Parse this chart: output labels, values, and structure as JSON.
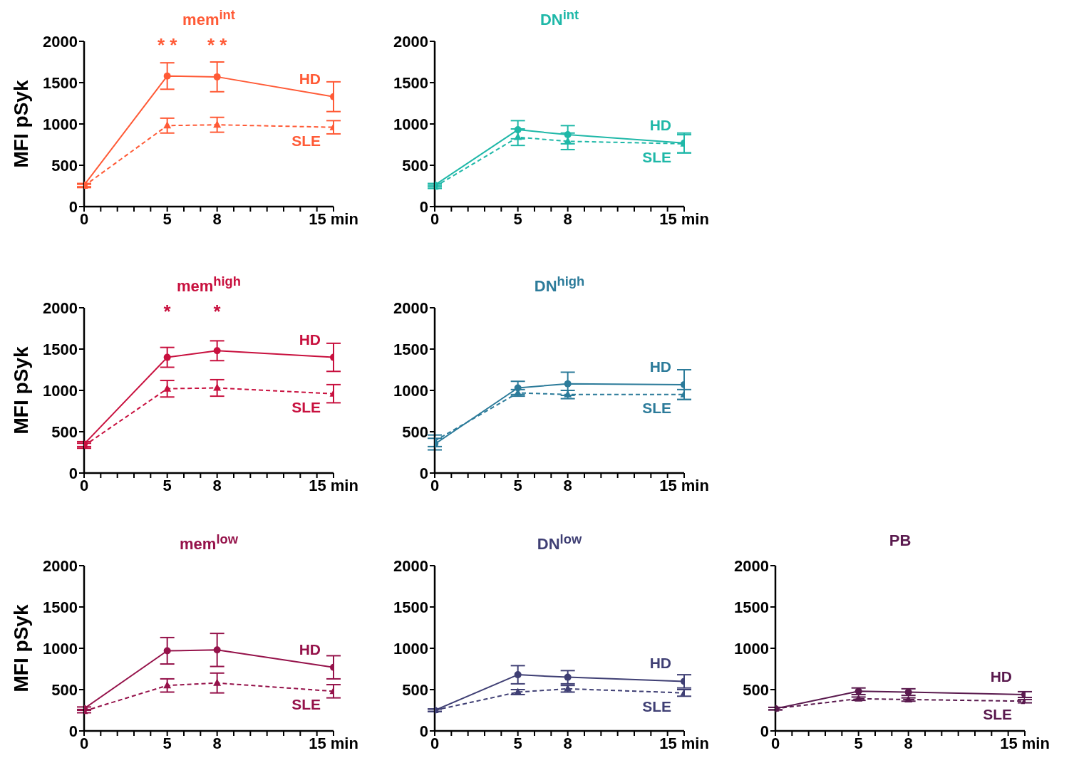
{
  "chart_data": [
    {
      "type": "line",
      "title": "mem$^{int}$",
      "ylabel": "MFI pSyk",
      "x": [
        0,
        5,
        8,
        15
      ],
      "xlim": [
        0,
        15
      ],
      "xticks": [
        0,
        {
          "value": 1,
          "label": null
        },
        {
          "value": 2,
          "label": null
        },
        {
          "value": 3,
          "label": null
        },
        {
          "value": 4,
          "label": null
        },
        5,
        {
          "value": 6,
          "label": null
        },
        {
          "value": 7,
          "label": null
        },
        8,
        {
          "value": 9,
          "label": null
        },
        {
          "value": 10,
          "label": null
        },
        {
          "value": 11,
          "label": null
        },
        {
          "value": 12,
          "label": null
        },
        {
          "value": 13,
          "label": null
        },
        {
          "value": 14,
          "label": null
        },
        {
          "value": 15,
          "label": "15 min"
        }
      ],
      "ylim": [
        0,
        2000
      ],
      "yticks": [
        0,
        500,
        1000,
        1500,
        2000
      ],
      "grid": false,
      "legend": false,
      "series": [
        {
          "name": "HD",
          "color": "#ff5a36",
          "marker": "circle",
          "line_style": "solid",
          "values": [
            260,
            1580,
            1570,
            1330
          ],
          "errors": [
            20,
            160,
            180,
            180
          ]
        },
        {
          "name": "SLE",
          "color": "#ff5a36",
          "marker": "triangle",
          "line_style": "dashed",
          "values": [
            250,
            980,
            990,
            960
          ],
          "errors": [
            20,
            90,
            90,
            80
          ]
        }
      ],
      "annotations": [
        "* *",
        "* *"
      ]
    },
    {
      "type": "line",
      "title": "DN$^{int}$",
      "x": [
        0,
        5,
        8,
        15
      ],
      "xlim": [
        0,
        15
      ],
      "xticks": [
        0,
        {
          "value": 1,
          "label": null
        },
        {
          "value": 2,
          "label": null
        },
        {
          "value": 3,
          "label": null
        },
        {
          "value": 4,
          "label": null
        },
        5,
        {
          "value": 6,
          "label": null
        },
        {
          "value": 7,
          "label": null
        },
        8,
        {
          "value": 9,
          "label": null
        },
        {
          "value": 10,
          "label": null
        },
        {
          "value": 11,
          "label": null
        },
        {
          "value": 12,
          "label": null
        },
        {
          "value": 13,
          "label": null
        },
        {
          "value": 14,
          "label": null
        },
        {
          "value": 15,
          "label": "15 min"
        }
      ],
      "ylim": [
        0,
        2000
      ],
      "yticks": [
        0,
        500,
        1000,
        1500,
        2000
      ],
      "grid": false,
      "legend": false,
      "series": [
        {
          "name": "HD",
          "color": "#1fb8a8",
          "marker": "circle",
          "line_style": "solid",
          "values": [
            260,
            930,
            870,
            770
          ],
          "errors": [
            20,
            110,
            110,
            120
          ]
        },
        {
          "name": "SLE",
          "color": "#1fb8a8",
          "marker": "triangle",
          "line_style": "dashed",
          "values": [
            240,
            840,
            790,
            760
          ],
          "errors": [
            20,
            100,
            100,
            110
          ]
        }
      ]
    },
    {
      "type": "line",
      "title": "mem$^{high}$",
      "ylabel": "MFI pSyk",
      "x": [
        0,
        5,
        8,
        15
      ],
      "xlim": [
        0,
        15
      ],
      "xticks": [
        0,
        {
          "value": 1,
          "label": null
        },
        {
          "value": 2,
          "label": null
        },
        {
          "value": 3,
          "label": null
        },
        {
          "value": 4,
          "label": null
        },
        5,
        {
          "value": 6,
          "label": null
        },
        {
          "value": 7,
          "label": null
        },
        8,
        {
          "value": 9,
          "label": null
        },
        {
          "value": 10,
          "label": null
        },
        {
          "value": 11,
          "label": null
        },
        {
          "value": 12,
          "label": null
        },
        {
          "value": 13,
          "label": null
        },
        {
          "value": 14,
          "label": null
        },
        {
          "value": 15,
          "label": "15 min"
        }
      ],
      "ylim": [
        0,
        2000
      ],
      "yticks": [
        0,
        500,
        1000,
        1500,
        2000
      ],
      "grid": false,
      "legend": false,
      "series": [
        {
          "name": "HD",
          "color": "#c8103e",
          "marker": "circle",
          "line_style": "solid",
          "values": [
            350,
            1400,
            1480,
            1400
          ],
          "errors": [
            30,
            120,
            120,
            170
          ]
        },
        {
          "name": "SLE",
          "color": "#c8103e",
          "marker": "triangle",
          "line_style": "dashed",
          "values": [
            330,
            1020,
            1030,
            960
          ],
          "errors": [
            30,
            100,
            100,
            110
          ]
        }
      ],
      "annotations": [
        "*",
        "*"
      ]
    },
    {
      "type": "line",
      "title": "DN$^{high}$",
      "x": [
        0,
        5,
        8,
        15
      ],
      "xlim": [
        0,
        15
      ],
      "xticks": [
        0,
        {
          "value": 1,
          "label": null
        },
        {
          "value": 2,
          "label": null
        },
        {
          "value": 3,
          "label": null
        },
        {
          "value": 4,
          "label": null
        },
        5,
        {
          "value": 6,
          "label": null
        },
        {
          "value": 7,
          "label": null
        },
        8,
        {
          "value": 9,
          "label": null
        },
        {
          "value": 10,
          "label": null
        },
        {
          "value": 11,
          "label": null
        },
        {
          "value": 12,
          "label": null
        },
        {
          "value": 13,
          "label": null
        },
        {
          "value": 14,
          "label": null
        },
        {
          "value": 15,
          "label": "15 min"
        }
      ],
      "ylim": [
        0,
        2000
      ],
      "yticks": [
        0,
        500,
        1000,
        1500,
        2000
      ],
      "grid": false,
      "legend": false,
      "series": [
        {
          "name": "HD",
          "color": "#2c7b9a",
          "marker": "circle",
          "line_style": "solid",
          "values": [
            350,
            1030,
            1080,
            1070
          ],
          "errors": [
            70,
            80,
            140,
            180
          ]
        },
        {
          "name": "SLE",
          "color": "#2c7b9a",
          "marker": "triangle",
          "line_style": "dashed",
          "values": [
            390,
            970,
            950,
            950
          ],
          "errors": [
            70,
            40,
            50,
            60
          ]
        }
      ]
    },
    {
      "type": "line",
      "title": "mem$^{low}$",
      "ylabel": "MFI pSyk",
      "x": [
        0,
        5,
        8,
        15
      ],
      "xlim": [
        0,
        15
      ],
      "xticks": [
        0,
        {
          "value": 1,
          "label": null
        },
        {
          "value": 2,
          "label": null
        },
        {
          "value": 3,
          "label": null
        },
        {
          "value": 4,
          "label": null
        },
        5,
        {
          "value": 6,
          "label": null
        },
        {
          "value": 7,
          "label": null
        },
        8,
        {
          "value": 9,
          "label": null
        },
        {
          "value": 10,
          "label": null
        },
        {
          "value": 11,
          "label": null
        },
        {
          "value": 12,
          "label": null
        },
        {
          "value": 13,
          "label": null
        },
        {
          "value": 14,
          "label": null
        },
        {
          "value": 15,
          "label": "15 min"
        }
      ],
      "ylim": [
        0,
        2000
      ],
      "yticks": [
        0,
        500,
        1000,
        1500,
        2000
      ],
      "grid": false,
      "legend": false,
      "series": [
        {
          "name": "HD",
          "color": "#95124a",
          "marker": "circle",
          "line_style": "solid",
          "values": [
            270,
            970,
            980,
            770
          ],
          "errors": [
            20,
            160,
            200,
            140
          ]
        },
        {
          "name": "SLE",
          "color": "#95124a",
          "marker": "triangle",
          "line_style": "dashed",
          "values": [
            240,
            550,
            580,
            480
          ],
          "errors": [
            20,
            80,
            120,
            80
          ]
        }
      ]
    },
    {
      "type": "line",
      "title": "DN$^{low}$",
      "x": [
        0,
        5,
        8,
        15
      ],
      "xlim": [
        0,
        15
      ],
      "xticks": [
        0,
        {
          "value": 1,
          "label": null
        },
        {
          "value": 2,
          "label": null
        },
        {
          "value": 3,
          "label": null
        },
        {
          "value": 4,
          "label": null
        },
        5,
        {
          "value": 6,
          "label": null
        },
        {
          "value": 7,
          "label": null
        },
        8,
        {
          "value": 9,
          "label": null
        },
        {
          "value": 10,
          "label": null
        },
        {
          "value": 11,
          "label": null
        },
        {
          "value": 12,
          "label": null
        },
        {
          "value": 13,
          "label": null
        },
        {
          "value": 14,
          "label": null
        },
        {
          "value": 15,
          "label": "15 min"
        }
      ],
      "ylim": [
        0,
        2000
      ],
      "yticks": [
        0,
        500,
        1000,
        1500,
        2000
      ],
      "grid": false,
      "legend": false,
      "series": [
        {
          "name": "HD",
          "color": "#3f3f74",
          "marker": "circle",
          "line_style": "solid",
          "values": [
            250,
            680,
            650,
            600
          ],
          "errors": [
            15,
            110,
            80,
            80
          ]
        },
        {
          "name": "SLE",
          "color": "#3f3f74",
          "marker": "triangle",
          "line_style": "dashed",
          "values": [
            250,
            470,
            510,
            460
          ],
          "errors": [
            15,
            30,
            40,
            40
          ]
        }
      ]
    },
    {
      "type": "line",
      "title": "PB",
      "x": [
        0,
        5,
        8,
        15
      ],
      "xlim": [
        0,
        15
      ],
      "xticks": [
        0,
        {
          "value": 1,
          "label": null
        },
        {
          "value": 2,
          "label": null
        },
        {
          "value": 3,
          "label": null
        },
        {
          "value": 4,
          "label": null
        },
        5,
        {
          "value": 6,
          "label": null
        },
        {
          "value": 7,
          "label": null
        },
        8,
        {
          "value": 9,
          "label": null
        },
        {
          "value": 10,
          "label": null
        },
        {
          "value": 11,
          "label": null
        },
        {
          "value": 12,
          "label": null
        },
        {
          "value": 13,
          "label": null
        },
        {
          "value": 14,
          "label": null
        },
        {
          "value": 15,
          "label": "15 min"
        }
      ],
      "ylim": [
        0,
        2000
      ],
      "yticks": [
        0,
        500,
        1000,
        1500,
        2000
      ],
      "grid": false,
      "legend": false,
      "series": [
        {
          "name": "HD",
          "color": "#5a1a4e",
          "marker": "circle",
          "line_style": "solid",
          "values": [
            270,
            480,
            470,
            440
          ],
          "errors": [
            15,
            40,
            40,
            35
          ]
        },
        {
          "name": "SLE",
          "color": "#5a1a4e",
          "marker": "triangle",
          "line_style": "dashed",
          "values": [
            270,
            390,
            380,
            360
          ],
          "errors": [
            15,
            20,
            20,
            20
          ]
        }
      ]
    }
  ]
}
